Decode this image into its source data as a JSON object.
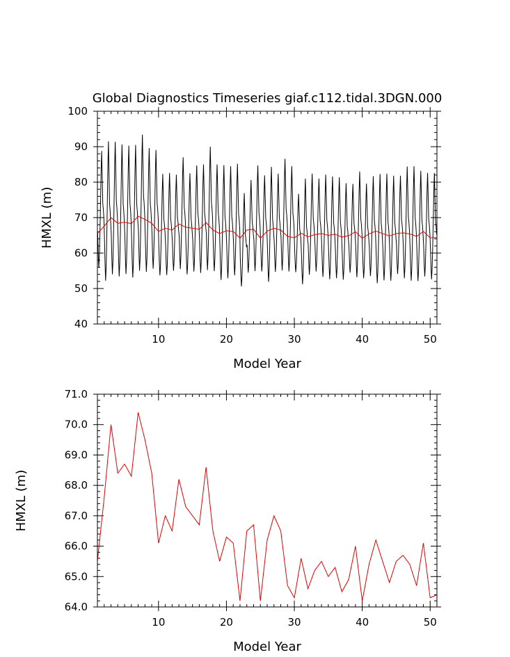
{
  "title": "Global Diagnostics Timeseries giaf.c112.tidal.3DGN.000",
  "colors": {
    "monthly": "#000000",
    "annual": "#e00000",
    "axis": "#000000"
  },
  "chart_data": [
    {
      "type": "line",
      "panel": "top",
      "xlabel": "Model Year",
      "ylabel": "HMXL (m)",
      "xlim": [
        1,
        51
      ],
      "ylim": [
        40,
        100
      ],
      "xticks": [
        10,
        20,
        30,
        40,
        50
      ],
      "xtick_labels": [
        "10",
        "20",
        "30",
        "40",
        "50"
      ],
      "yticks": [
        40,
        50,
        60,
        70,
        80,
        90,
        100
      ],
      "ytick_labels": [
        "40",
        "50",
        "60",
        "70",
        "80",
        "90",
        "100"
      ],
      "series": [
        {
          "name": "monthly HMXL",
          "color": "#000000",
          "x_start": 1.0417,
          "x_step": 0.08333,
          "months_per_year": 12,
          "annual_max": [
            88.8,
            91.5,
            91.4,
            90.6,
            90.3,
            90.5,
            93.4,
            89.6,
            89.1,
            82.3,
            82.6,
            82.1,
            87.0,
            82.5,
            84.7,
            85.0,
            90.0,
            85.0,
            84.8,
            84.5,
            85.2,
            76.9,
            80.6,
            84.7,
            81.9,
            84.3,
            82.4,
            86.6,
            84.5,
            76.7,
            81.0,
            82.4,
            81.0,
            82.1,
            81.6,
            81.4,
            79.7,
            79.5,
            83.0,
            79.6,
            81.7,
            82.3,
            82.4,
            81.8,
            81.8,
            84.4,
            84.5,
            83.2,
            82.6,
            82.6,
            79.4
          ],
          "annual_min": [
            55.9,
            52.2,
            54.0,
            53.4,
            54.1,
            53.1,
            55.0,
            54.7,
            55.6,
            53.7,
            53.8,
            55.0,
            55.5,
            54.0,
            54.8,
            54.4,
            55.2,
            54.9,
            52.4,
            52.9,
            53.7,
            50.6,
            54.5,
            54.9,
            54.8,
            51.9,
            54.7,
            55.1,
            54.8,
            54.6,
            51.2,
            53.9,
            54.8,
            53.3,
            52.6,
            52.9,
            52.5,
            54.5,
            53.2,
            52.9,
            53.5,
            51.5,
            52.3,
            52.2,
            54.1,
            52.9,
            52.2,
            52.1,
            53.4,
            52.6,
            51.0
          ]
        },
        {
          "name": "annual mean HMXL",
          "color": "#e00000",
          "x": [
            1,
            2,
            3,
            4,
            5,
            6,
            7,
            8,
            9,
            10,
            11,
            12,
            13,
            14,
            15,
            16,
            17,
            18,
            19,
            20,
            21,
            22,
            23,
            24,
            25,
            26,
            27,
            28,
            29,
            30,
            31,
            32,
            33,
            34,
            35,
            36,
            37,
            38,
            39,
            40,
            41,
            42,
            43,
            44,
            45,
            46,
            47,
            48,
            49,
            50,
            51
          ],
          "values": [
            65.5,
            67.6,
            70.0,
            68.4,
            68.7,
            68.3,
            70.4,
            69.5,
            68.4,
            66.1,
            67.0,
            66.5,
            68.2,
            67.3,
            67.0,
            66.7,
            68.6,
            66.5,
            65.5,
            66.3,
            66.1,
            64.2,
            66.5,
            66.7,
            64.2,
            66.2,
            67.0,
            66.5,
            64.7,
            64.3,
            65.6,
            64.6,
            65.2,
            65.5,
            65.0,
            65.3,
            64.5,
            64.9,
            66.0,
            64.2,
            65.4,
            66.2,
            65.5,
            64.8,
            65.5,
            65.7,
            65.4,
            64.7,
            66.1,
            64.3,
            64.4
          ]
        }
      ]
    },
    {
      "type": "line",
      "panel": "bottom",
      "xlabel": "Model Year",
      "ylabel": "HMXL (m)",
      "xlim": [
        1,
        51
      ],
      "ylim": [
        64,
        71
      ],
      "xticks": [
        10,
        20,
        30,
        40,
        50
      ],
      "xtick_labels": [
        "10",
        "20",
        "30",
        "40",
        "50"
      ],
      "yticks": [
        64,
        65,
        66,
        67,
        68,
        69,
        70,
        71
      ],
      "ytick_labels": [
        "64.0",
        "65.0",
        "66.0",
        "67.0",
        "68.0",
        "69.0",
        "70.0",
        "71.0"
      ],
      "series": [
        {
          "name": "annual mean HMXL",
          "color": "#e00000",
          "x": [
            1,
            2,
            3,
            4,
            5,
            6,
            7,
            8,
            9,
            10,
            11,
            12,
            13,
            14,
            15,
            16,
            17,
            18,
            19,
            20,
            21,
            22,
            23,
            24,
            25,
            26,
            27,
            28,
            29,
            30,
            31,
            32,
            33,
            34,
            35,
            36,
            37,
            38,
            39,
            40,
            41,
            42,
            43,
            44,
            45,
            46,
            47,
            48,
            49,
            50,
            51
          ],
          "values": [
            65.5,
            67.6,
            70.0,
            68.4,
            68.7,
            68.3,
            70.4,
            69.5,
            68.4,
            66.1,
            67.0,
            66.5,
            68.2,
            67.3,
            67.0,
            66.7,
            68.6,
            66.5,
            65.5,
            66.3,
            66.1,
            64.2,
            66.5,
            66.7,
            64.2,
            66.2,
            67.0,
            66.5,
            64.7,
            64.3,
            65.6,
            64.6,
            65.2,
            65.5,
            65.0,
            65.3,
            64.5,
            64.9,
            66.0,
            64.2,
            65.4,
            66.2,
            65.5,
            64.8,
            65.5,
            65.7,
            65.4,
            64.7,
            66.1,
            64.3,
            64.4
          ]
        }
      ]
    }
  ]
}
